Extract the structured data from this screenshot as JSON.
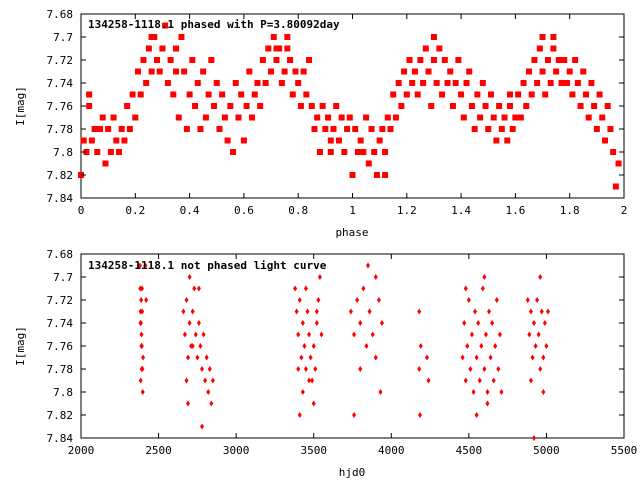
{
  "chart_data": [
    {
      "type": "scatter",
      "title": "134258-1118.1 phased with P=3.80092day",
      "xlabel": "phase",
      "ylabel": "I[mag]",
      "xlim": [
        0,
        2
      ],
      "ylim": [
        7.68,
        7.84
      ],
      "y_inverted": true,
      "x_ticks": [
        "0",
        "0.2",
        "0.4",
        "0.6",
        "0.8",
        "1",
        "1.2",
        "1.4",
        "1.6",
        "1.8",
        "2"
      ],
      "y_ticks": [
        "7.68",
        "7.7",
        "7.72",
        "7.74",
        "7.76",
        "7.78",
        "7.8",
        "7.82",
        "7.84"
      ],
      "marker": "filled-square",
      "color": "#ff0000",
      "grid": false,
      "points": [
        [
          0.0,
          7.82
        ],
        [
          0.01,
          7.79
        ],
        [
          0.02,
          7.8
        ],
        [
          0.03,
          7.76
        ],
        [
          0.03,
          7.75
        ],
        [
          0.04,
          7.79
        ],
        [
          0.05,
          7.78
        ],
        [
          0.06,
          7.8
        ],
        [
          0.07,
          7.78
        ],
        [
          0.08,
          7.77
        ],
        [
          0.09,
          7.81
        ],
        [
          0.1,
          7.78
        ],
        [
          0.11,
          7.8
        ],
        [
          0.12,
          7.77
        ],
        [
          0.13,
          7.79
        ],
        [
          0.14,
          7.8
        ],
        [
          0.15,
          7.78
        ],
        [
          0.16,
          7.79
        ],
        [
          0.17,
          7.76
        ],
        [
          0.18,
          7.78
        ],
        [
          0.19,
          7.75
        ],
        [
          0.2,
          7.77
        ],
        [
          0.21,
          7.73
        ],
        [
          0.22,
          7.75
        ],
        [
          0.23,
          7.72
        ],
        [
          0.24,
          7.74
        ],
        [
          0.25,
          7.71
        ],
        [
          0.26,
          7.73
        ],
        [
          0.27,
          7.7
        ],
        [
          0.28,
          7.72
        ],
        [
          0.29,
          7.73
        ],
        [
          0.3,
          7.71
        ],
        [
          0.31,
          7.69
        ],
        [
          0.32,
          7.74
        ],
        [
          0.33,
          7.72
        ],
        [
          0.34,
          7.75
        ],
        [
          0.35,
          7.71
        ],
        [
          0.36,
          7.77
        ],
        [
          0.37,
          7.7
        ],
        [
          0.38,
          7.73
        ],
        [
          0.39,
          7.78
        ],
        [
          0.4,
          7.75
        ],
        [
          0.41,
          7.72
        ],
        [
          0.42,
          7.76
        ],
        [
          0.43,
          7.74
        ],
        [
          0.44,
          7.78
        ],
        [
          0.45,
          7.73
        ],
        [
          0.46,
          7.77
        ],
        [
          0.47,
          7.75
        ],
        [
          0.48,
          7.72
        ],
        [
          0.49,
          7.76
        ],
        [
          0.5,
          7.74
        ],
        [
          0.51,
          7.78
        ],
        [
          0.52,
          7.75
        ],
        [
          0.53,
          7.77
        ],
        [
          0.54,
          7.79
        ],
        [
          0.55,
          7.76
        ],
        [
          0.56,
          7.8
        ],
        [
          0.57,
          7.74
        ],
        [
          0.58,
          7.77
        ],
        [
          0.59,
          7.75
        ],
        [
          0.6,
          7.79
        ],
        [
          0.61,
          7.76
        ],
        [
          0.62,
          7.73
        ],
        [
          0.63,
          7.77
        ],
        [
          0.64,
          7.75
        ],
        [
          0.65,
          7.74
        ],
        [
          0.66,
          7.76
        ],
        [
          0.67,
          7.72
        ],
        [
          0.68,
          7.74
        ],
        [
          0.69,
          7.71
        ],
        [
          0.7,
          7.73
        ],
        [
          0.71,
          7.7
        ],
        [
          0.72,
          7.72
        ],
        [
          0.73,
          7.71
        ],
        [
          0.74,
          7.74
        ],
        [
          0.75,
          7.73
        ],
        [
          0.76,
          7.71
        ],
        [
          0.77,
          7.72
        ],
        [
          0.78,
          7.75
        ],
        [
          0.79,
          7.73
        ],
        [
          0.8,
          7.74
        ],
        [
          0.81,
          7.76
        ],
        [
          0.82,
          7.73
        ],
        [
          0.83,
          7.75
        ],
        [
          0.84,
          7.72
        ],
        [
          0.85,
          7.76
        ],
        [
          0.86,
          7.78
        ],
        [
          0.87,
          7.77
        ],
        [
          0.88,
          7.8
        ],
        [
          0.89,
          7.76
        ],
        [
          0.9,
          7.78
        ],
        [
          0.91,
          7.77
        ],
        [
          0.92,
          7.79
        ],
        [
          0.93,
          7.78
        ],
        [
          0.94,
          7.76
        ],
        [
          0.95,
          7.79
        ],
        [
          0.96,
          7.77
        ],
        [
          0.97,
          7.8
        ],
        [
          0.98,
          7.78
        ],
        [
          0.99,
          7.77
        ],
        [
          1.0,
          7.82
        ],
        [
          1.01,
          7.78
        ],
        [
          1.02,
          7.8
        ],
        [
          1.03,
          7.79
        ],
        [
          1.04,
          7.8
        ],
        [
          1.05,
          7.77
        ],
        [
          1.06,
          7.81
        ],
        [
          1.07,
          7.78
        ],
        [
          1.08,
          7.8
        ],
        [
          1.09,
          7.82
        ],
        [
          1.1,
          7.79
        ],
        [
          1.11,
          7.78
        ],
        [
          1.12,
          7.8
        ],
        [
          1.13,
          7.77
        ],
        [
          1.14,
          7.78
        ],
        [
          1.15,
          7.75
        ],
        [
          1.16,
          7.77
        ],
        [
          1.17,
          7.74
        ],
        [
          1.18,
          7.76
        ],
        [
          1.19,
          7.73
        ],
        [
          1.2,
          7.75
        ],
        [
          1.21,
          7.72
        ],
        [
          1.22,
          7.74
        ],
        [
          1.23,
          7.73
        ],
        [
          1.24,
          7.75
        ],
        [
          1.25,
          7.72
        ],
        [
          1.26,
          7.74
        ],
        [
          1.27,
          7.71
        ],
        [
          1.28,
          7.73
        ],
        [
          1.29,
          7.76
        ],
        [
          1.3,
          7.72
        ],
        [
          1.31,
          7.74
        ],
        [
          1.32,
          7.71
        ],
        [
          1.33,
          7.75
        ],
        [
          1.34,
          7.72
        ],
        [
          1.35,
          7.74
        ],
        [
          1.36,
          7.73
        ],
        [
          1.37,
          7.76
        ],
        [
          1.38,
          7.74
        ],
        [
          1.39,
          7.72
        ],
        [
          1.4,
          7.75
        ],
        [
          1.41,
          7.77
        ],
        [
          1.42,
          7.74
        ],
        [
          1.43,
          7.73
        ],
        [
          1.44,
          7.76
        ],
        [
          1.45,
          7.78
        ],
        [
          1.46,
          7.75
        ],
        [
          1.47,
          7.77
        ],
        [
          1.48,
          7.74
        ],
        [
          1.49,
          7.76
        ],
        [
          1.5,
          7.78
        ],
        [
          1.51,
          7.75
        ],
        [
          1.52,
          7.77
        ],
        [
          1.53,
          7.79
        ],
        [
          1.54,
          7.76
        ],
        [
          1.55,
          7.78
        ],
        [
          1.56,
          7.77
        ],
        [
          1.57,
          7.79
        ],
        [
          1.58,
          7.76
        ],
        [
          1.59,
          7.78
        ],
        [
          1.6,
          7.77
        ],
        [
          1.61,
          7.75
        ],
        [
          1.62,
          7.77
        ],
        [
          1.63,
          7.74
        ],
        [
          1.64,
          7.76
        ],
        [
          1.65,
          7.73
        ],
        [
          1.66,
          7.75
        ],
        [
          1.67,
          7.72
        ],
        [
          1.68,
          7.74
        ],
        [
          1.69,
          7.71
        ],
        [
          1.7,
          7.73
        ],
        [
          1.71,
          7.75
        ],
        [
          1.72,
          7.72
        ],
        [
          1.73,
          7.74
        ],
        [
          1.74,
          7.71
        ],
        [
          1.75,
          7.73
        ],
        [
          1.76,
          7.72
        ],
        [
          1.77,
          7.74
        ],
        [
          1.78,
          7.72
        ],
        [
          1.79,
          7.74
        ],
        [
          1.8,
          7.73
        ],
        [
          1.81,
          7.75
        ],
        [
          1.82,
          7.72
        ],
        [
          1.83,
          7.74
        ],
        [
          1.84,
          7.76
        ],
        [
          1.85,
          7.73
        ],
        [
          1.86,
          7.75
        ],
        [
          1.87,
          7.77
        ],
        [
          1.88,
          7.74
        ],
        [
          1.89,
          7.76
        ],
        [
          1.9,
          7.78
        ],
        [
          1.91,
          7.75
        ],
        [
          1.92,
          7.77
        ],
        [
          1.93,
          7.79
        ],
        [
          1.94,
          7.76
        ],
        [
          1.95,
          7.78
        ],
        [
          1.96,
          7.8
        ],
        [
          1.97,
          7.83
        ],
        [
          1.98,
          7.81
        ],
        [
          0.26,
          7.7
        ],
        [
          0.72,
          7.71
        ],
        [
          0.76,
          7.7
        ],
        [
          1.3,
          7.7
        ],
        [
          1.58,
          7.75
        ],
        [
          1.74,
          7.7
        ],
        [
          0.35,
          7.73
        ],
        [
          0.92,
          7.8
        ],
        [
          1.12,
          7.82
        ],
        [
          1.7,
          7.7
        ]
      ]
    },
    {
      "type": "scatter",
      "title": "134258-1118.1 not phased light curve",
      "xlabel": "hjd0",
      "ylabel": "I[mag]",
      "xlim": [
        2000,
        5500
      ],
      "ylim": [
        7.68,
        7.84
      ],
      "y_inverted": true,
      "x_ticks": [
        "2000",
        "2500",
        "3000",
        "3500",
        "4000",
        "4500",
        "5000",
        "5500"
      ],
      "y_ticks": [
        "7.68",
        "7.7",
        "7.72",
        "7.74",
        "7.76",
        "7.78",
        "7.8",
        "7.82",
        "7.84"
      ],
      "marker": "filled-diamond",
      "color": "#ff0000",
      "grid": false,
      "points": [
        [
          2380,
          7.69
        ],
        [
          2382,
          7.71
        ],
        [
          2384,
          7.73
        ],
        [
          2386,
          7.74
        ],
        [
          2388,
          7.72
        ],
        [
          2390,
          7.75
        ],
        [
          2392,
          7.76
        ],
        [
          2394,
          7.73
        ],
        [
          2396,
          7.78
        ],
        [
          2398,
          7.8
        ],
        [
          2400,
          7.77
        ],
        [
          2385,
          7.79
        ],
        [
          2389,
          7.76
        ],
        [
          2393,
          7.71
        ],
        [
          2383,
          7.74
        ],
        [
          2391,
          7.78
        ],
        [
          2415,
          7.69
        ],
        [
          2420,
          7.72
        ],
        [
          2660,
          7.73
        ],
        [
          2670,
          7.75
        ],
        [
          2680,
          7.72
        ],
        [
          2690,
          7.77
        ],
        [
          2700,
          7.74
        ],
        [
          2710,
          7.76
        ],
        [
          2720,
          7.73
        ],
        [
          2730,
          7.71
        ],
        [
          2700,
          7.7
        ],
        [
          2740,
          7.75
        ],
        [
          2750,
          7.77
        ],
        [
          2760,
          7.74
        ],
        [
          2770,
          7.76
        ],
        [
          2780,
          7.78
        ],
        [
          2790,
          7.75
        ],
        [
          2800,
          7.79
        ],
        [
          2810,
          7.77
        ],
        [
          2820,
          7.8
        ],
        [
          2830,
          7.78
        ],
        [
          2840,
          7.81
        ],
        [
          2850,
          7.79
        ],
        [
          2680,
          7.79
        ],
        [
          2690,
          7.81
        ],
        [
          2780,
          7.83
        ],
        [
          2720,
          7.76
        ],
        [
          2760,
          7.71
        ],
        [
          3380,
          7.71
        ],
        [
          3390,
          7.73
        ],
        [
          3400,
          7.75
        ],
        [
          3410,
          7.72
        ],
        [
          3420,
          7.77
        ],
        [
          3430,
          7.74
        ],
        [
          3440,
          7.76
        ],
        [
          3450,
          7.78
        ],
        [
          3460,
          7.73
        ],
        [
          3470,
          7.75
        ],
        [
          3480,
          7.77
        ],
        [
          3490,
          7.79
        ],
        [
          3500,
          7.76
        ],
        [
          3510,
          7.78
        ],
        [
          3520,
          7.74
        ],
        [
          3530,
          7.72
        ],
        [
          3540,
          7.7
        ],
        [
          3550,
          7.75
        ],
        [
          3400,
          7.78
        ],
        [
          3430,
          7.8
        ],
        [
          3450,
          7.71
        ],
        [
          3470,
          7.79
        ],
        [
          3500,
          7.81
        ],
        [
          3520,
          7.73
        ],
        [
          3410,
          7.82
        ],
        [
          3740,
          7.73
        ],
        [
          3760,
          7.75
        ],
        [
          3780,
          7.72
        ],
        [
          3800,
          7.74
        ],
        [
          3820,
          7.71
        ],
        [
          3840,
          7.76
        ],
        [
          3860,
          7.73
        ],
        [
          3880,
          7.75
        ],
        [
          3900,
          7.7
        ],
        [
          3920,
          7.72
        ],
        [
          3940,
          7.74
        ],
        [
          3760,
          7.82
        ],
        [
          3800,
          7.78
        ],
        [
          3850,
          7.69
        ],
        [
          3900,
          7.77
        ],
        [
          3930,
          7.8
        ],
        [
          4180,
          7.73
        ],
        [
          4180,
          7.78
        ],
        [
          4185,
          7.82
        ],
        [
          4190,
          7.76
        ],
        [
          4230,
          7.77
        ],
        [
          4240,
          7.79
        ],
        [
          4460,
          7.77
        ],
        [
          4470,
          7.74
        ],
        [
          4480,
          7.79
        ],
        [
          4490,
          7.76
        ],
        [
          4500,
          7.72
        ],
        [
          4510,
          7.78
        ],
        [
          4520,
          7.75
        ],
        [
          4530,
          7.8
        ],
        [
          4540,
          7.73
        ],
        [
          4550,
          7.77
        ],
        [
          4560,
          7.74
        ],
        [
          4570,
          7.79
        ],
        [
          4580,
          7.76
        ],
        [
          4590,
          7.71
        ],
        [
          4600,
          7.78
        ],
        [
          4610,
          7.75
        ],
        [
          4620,
          7.8
        ],
        [
          4630,
          7.73
        ],
        [
          4640,
          7.77
        ],
        [
          4650,
          7.74
        ],
        [
          4660,
          7.79
        ],
        [
          4670,
          7.76
        ],
        [
          4680,
          7.72
        ],
        [
          4690,
          7.78
        ],
        [
          4700,
          7.75
        ],
        [
          4710,
          7.8
        ],
        [
          4600,
          7.7
        ],
        [
          4550,
          7.82
        ],
        [
          4620,
          7.81
        ],
        [
          4480,
          7.71
        ],
        [
          4880,
          7.72
        ],
        [
          4890,
          7.75
        ],
        [
          4900,
          7.73
        ],
        [
          4910,
          7.77
        ],
        [
          4920,
          7.74
        ],
        [
          4930,
          7.76
        ],
        [
          4940,
          7.72
        ],
        [
          4950,
          7.75
        ],
        [
          4960,
          7.78
        ],
        [
          4970,
          7.73
        ],
        [
          4980,
          7.77
        ],
        [
          4990,
          7.74
        ],
        [
          5000,
          7.76
        ],
        [
          5010,
          7.73
        ],
        [
          4900,
          7.79
        ],
        [
          4920,
          7.84
        ],
        [
          4960,
          7.7
        ],
        [
          4980,
          7.8
        ]
      ]
    }
  ]
}
